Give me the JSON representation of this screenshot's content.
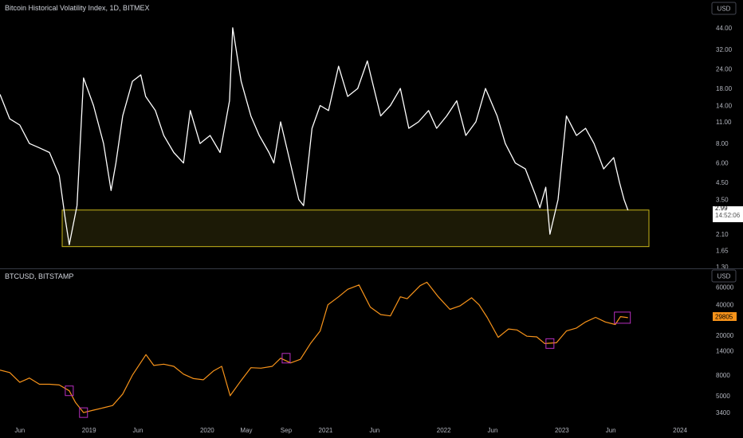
{
  "top_panel": {
    "title": "Bitcoin Historical Volatility Index, 1D, BITMEX",
    "currency_button": "USD",
    "price_tag": "2.99",
    "time_tag": "14:52:06"
  },
  "bottom_panel": {
    "title": "BTCUSD, BITSTAMP",
    "currency_button": "USD",
    "price_tag": "29805"
  },
  "colors": {
    "background": "#000000",
    "volatility_line": "#ffffff",
    "price_line": "#f7931a",
    "highlight_fill": "#1c1a06",
    "highlight_border": "#c8b61a",
    "marker": "#b82fc0",
    "price_tag_bg": "#f7931a",
    "axis_text": "#b2b5be",
    "divider": "#363a45"
  },
  "chart_data": [
    {
      "type": "line",
      "title": "Bitcoin Historical Volatility Index, 1D, BITMEX",
      "y_scale": "log",
      "ylim": [
        1.3,
        50
      ],
      "y_ticks": [
        "44.00",
        "32.00",
        "24.00",
        "18.00",
        "14.00",
        "11.00",
        "8.00",
        "6.00",
        "4.50",
        "3.50",
        "2.10",
        "1.65",
        "1.30"
      ],
      "x_ticks": [
        "Jun",
        "2019",
        "Jun",
        "2020",
        "May",
        "Sep",
        "2021",
        "Jun",
        "2022",
        "Jun",
        "2023",
        "Jun",
        "2024"
      ],
      "highlight_band": {
        "y_from": 1.75,
        "y_to": 3.0
      },
      "series": [
        {
          "x": [
            "2018-04-01",
            "2018-05-01",
            "2018-06-01",
            "2018-07-01",
            "2018-08-01",
            "2018-09-01",
            "2018-10-01",
            "2018-10-20",
            "2018-11-01",
            "2018-11-25",
            "2018-12-15",
            "2019-01-15",
            "2019-02-15",
            "2019-03-10",
            "2019-03-25",
            "2019-04-15",
            "2019-05-15",
            "2019-06-10",
            "2019-06-25",
            "2019-07-25",
            "2019-08-20",
            "2019-09-20",
            "2019-10-20",
            "2019-11-10",
            "2019-12-10",
            "2020-01-10",
            "2020-02-10",
            "2020-03-10",
            "2020-03-20",
            "2020-04-15",
            "2020-05-15",
            "2020-06-10",
            "2020-07-10",
            "2020-07-25",
            "2020-08-15",
            "2020-09-10",
            "2020-10-10",
            "2020-10-25",
            "2020-11-20",
            "2020-12-15",
            "2021-01-10",
            "2021-02-10",
            "2021-03-10",
            "2021-04-10",
            "2021-05-10",
            "2021-05-20",
            "2021-06-20",
            "2021-07-20",
            "2021-08-20",
            "2021-09-15",
            "2021-10-15",
            "2021-11-15",
            "2021-12-10",
            "2022-01-10",
            "2022-02-10",
            "2022-03-10",
            "2022-04-10",
            "2022-05-10",
            "2022-06-15",
            "2022-07-10",
            "2022-08-10",
            "2022-09-10",
            "2022-10-10",
            "2022-10-25",
            "2022-11-12",
            "2022-11-25",
            "2022-12-20",
            "2023-01-15",
            "2023-02-15",
            "2023-03-15",
            "2023-04-10",
            "2023-05-10",
            "2023-06-10",
            "2023-06-28",
            "2023-07-12",
            "2023-07-24"
          ],
          "values": [
            16.5,
            11.5,
            10.5,
            8,
            7.5,
            7,
            5,
            2.6,
            1.8,
            3.2,
            21,
            14,
            8,
            4,
            6,
            12,
            20,
            22,
            16,
            13,
            9,
            7,
            6,
            13,
            8,
            9,
            7,
            15,
            44,
            20,
            12,
            9,
            7,
            6,
            11,
            6.5,
            3.5,
            3.2,
            10,
            14,
            13,
            25,
            16,
            18,
            27,
            22,
            12,
            14,
            18,
            10,
            11,
            13,
            10,
            12,
            15,
            9,
            11,
            18,
            12,
            8,
            6,
            5.5,
            3.8,
            3.1,
            4.2,
            2.1,
            3.5,
            12,
            9,
            10,
            8,
            5.5,
            6.5,
            4.5,
            3.5,
            2.99
          ]
        }
      ]
    },
    {
      "type": "line",
      "title": "BTCUSD, BITSTAMP",
      "y_scale": "log",
      "ylim": [
        3000,
        70000
      ],
      "y_ticks": [
        "60000",
        "40000",
        "20000",
        "14000",
        "8000",
        "5000",
        "3400"
      ],
      "x_ticks": [
        "Jun",
        "2019",
        "Jun",
        "2020",
        "May",
        "Sep",
        "2021",
        "Jun",
        "2022",
        "Jun",
        "2023",
        "Jun",
        "2024"
      ],
      "series": [
        {
          "name": "BTCUSD",
          "x": [
            "2018-04-01",
            "2018-05-01",
            "2018-06-01",
            "2018-07-01",
            "2018-08-01",
            "2018-09-01",
            "2018-10-01",
            "2018-11-01",
            "2018-11-20",
            "2018-12-15",
            "2019-01-15",
            "2019-02-15",
            "2019-03-15",
            "2019-04-15",
            "2019-05-15",
            "2019-06-26",
            "2019-07-20",
            "2019-08-20",
            "2019-09-20",
            "2019-10-20",
            "2019-11-20",
            "2019-12-20",
            "2020-01-20",
            "2020-02-15",
            "2020-03-12",
            "2020-04-15",
            "2020-05-15",
            "2020-06-15",
            "2020-07-20",
            "2020-08-15",
            "2020-09-15",
            "2020-10-15",
            "2020-11-15",
            "2020-12-15",
            "2021-01-08",
            "2021-02-10",
            "2021-03-10",
            "2021-04-14",
            "2021-05-19",
            "2021-06-20",
            "2021-07-20",
            "2021-08-20",
            "2021-09-10",
            "2021-10-20",
            "2021-11-10",
            "2021-12-15",
            "2022-01-20",
            "2022-02-20",
            "2022-03-28",
            "2022-04-20",
            "2022-05-15",
            "2022-06-18",
            "2022-07-20",
            "2022-08-15",
            "2022-09-15",
            "2022-10-15",
            "2022-11-09",
            "2022-12-15",
            "2023-01-15",
            "2023-02-15",
            "2023-03-15",
            "2023-04-15",
            "2023-05-15",
            "2023-06-15",
            "2023-07-01",
            "2023-07-24"
          ],
          "values": [
            9000,
            8500,
            6800,
            7500,
            6500,
            6500,
            6400,
            5600,
            4300,
            3400,
            3600,
            3800,
            4000,
            5200,
            8000,
            12800,
            10000,
            10300,
            9800,
            8200,
            7400,
            7200,
            8800,
            9800,
            5000,
            7100,
            9500,
            9400,
            9800,
            11800,
            10600,
            11500,
            16500,
            22000,
            40000,
            48000,
            57000,
            63000,
            38000,
            32000,
            31000,
            48000,
            46000,
            62000,
            67000,
            48000,
            36000,
            39000,
            47000,
            40000,
            30000,
            19000,
            23000,
            22500,
            19500,
            19200,
            16500,
            16800,
            22000,
            23500,
            27000,
            30000,
            27000,
            25500,
            30500,
            29805
          ]
        }
      ]
    }
  ]
}
